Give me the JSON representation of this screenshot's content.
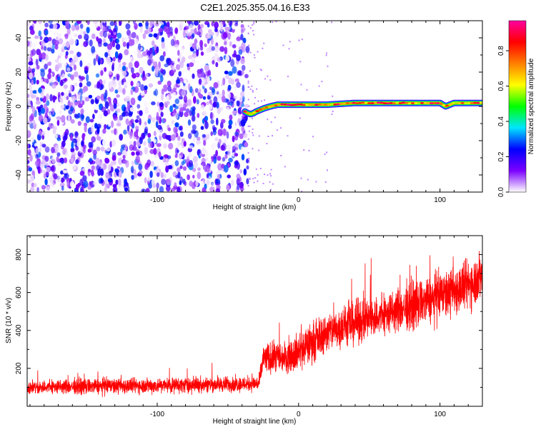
{
  "figure": {
    "title": "C2E1.2025.355.04.16.E33"
  },
  "chart_data": [
    {
      "type": "heatmap",
      "xlabel": "Height of straight line (km)",
      "ylabel": "Frequency (Hz)",
      "xlim": [
        -192,
        130
      ],
      "ylim": [
        -50,
        50
      ],
      "xticks": [
        -100,
        0,
        100
      ],
      "yticks": [
        -40,
        -20,
        0,
        20,
        40
      ],
      "colorbar": {
        "label": "Normalized spectral amplitude",
        "range": [
          0,
          0.97
        ],
        "ticks": [
          0.0,
          0.2,
          0.4,
          0.6,
          0.8
        ],
        "colors": [
          "#ffffff",
          "#7b00ff",
          "#0000ff",
          "#00e5ff",
          "#00ff00",
          "#ffff00",
          "#ff7f00",
          "#ff0000",
          "#ff00a0"
        ]
      },
      "noise_region": {
        "x_range": [
          -192,
          -36
        ],
        "amplitude_range": [
          0.0,
          0.3
        ]
      },
      "signal_line": {
        "x": [
          -38,
          -36,
          -34,
          -32,
          -30,
          -27,
          -24,
          -20,
          -15,
          -10,
          -5,
          0,
          10,
          20,
          40,
          60,
          80,
          100,
          104,
          110,
          130
        ],
        "y": [
          -3,
          -4,
          -4.5,
          -4,
          -3,
          -2,
          -1,
          0,
          1,
          1,
          1,
          1,
          1,
          1,
          2,
          2,
          2,
          2,
          0,
          2,
          2
        ]
      }
    },
    {
      "type": "line",
      "xlabel": "Height of straight line (km)",
      "ylabel": "SNR (10 * v/v)",
      "xlim": [
        -192,
        130
      ],
      "ylim": [
        0,
        900
      ],
      "xticks": [
        -100,
        0,
        100
      ],
      "yticks": [
        200,
        400,
        600,
        800
      ],
      "series": [
        {
          "color": "#ff0000",
          "x": [
            -192,
            -150,
            -100,
            -60,
            -28,
            -25,
            -10,
            0,
            20,
            40,
            60,
            80,
            100,
            120,
            130
          ],
          "y": [
            100,
            105,
            110,
            115,
            120,
            250,
            260,
            290,
            390,
            440,
            480,
            530,
            580,
            640,
            690
          ],
          "band_halfwidth": [
            35,
            40,
            40,
            40,
            40,
            80,
            80,
            100,
            100,
            110,
            110,
            120,
            120,
            130,
            130
          ]
        }
      ]
    }
  ]
}
